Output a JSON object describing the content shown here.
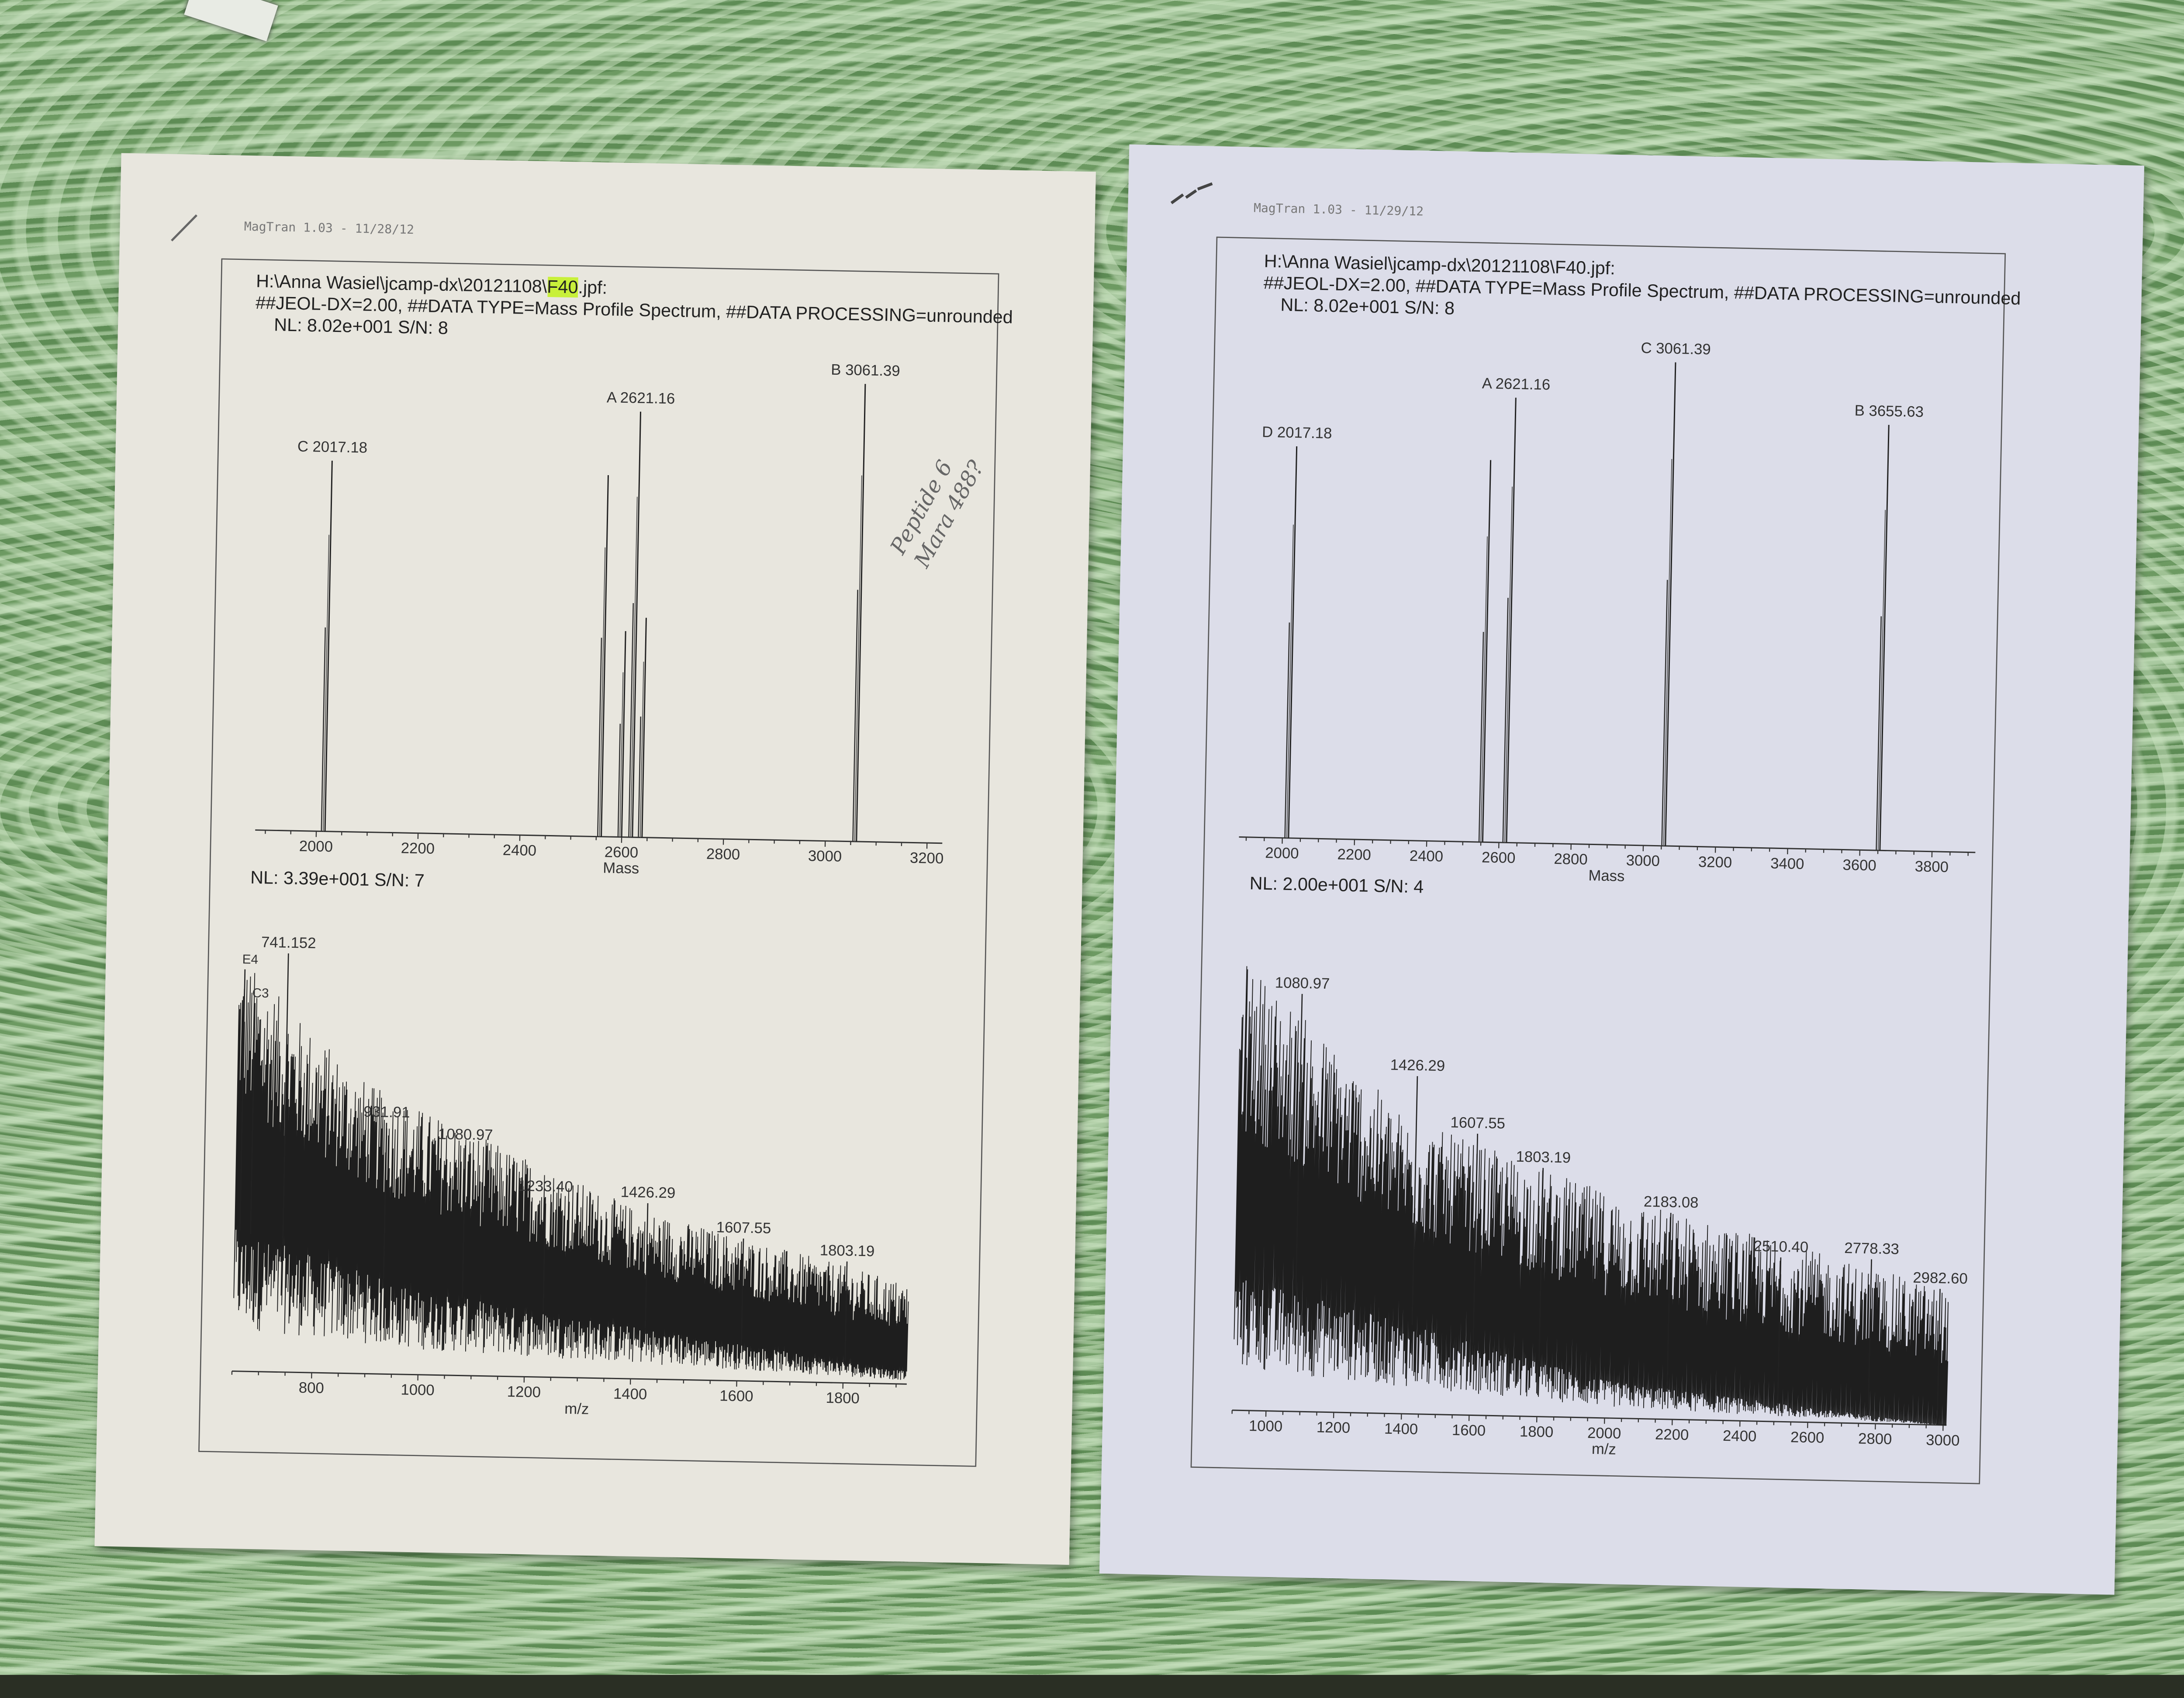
{
  "papers": [
    {
      "software": "MagTran 1.03 - 11/28/12",
      "file_prefix": "H:\\Anna Wasiel\\jcamp-dx\\20121108\\",
      "file_highlight": "F40",
      "file_suffix": ".jpf:",
      "header": "##JEOL-DX=2.00, ##DATA TYPE=Mass Profile Spectrum, ##DATA PROCESSING=unrounded",
      "handwritten_note": [
        "Peptide 6",
        "Mara 488?"
      ],
      "highlight_color": "#c8f03a",
      "paper_color": "#e8e6de"
    },
    {
      "software": "MagTran 1.03 - 11/29/12",
      "file_prefix": "H:\\Anna Wasiel\\jcamp-dx\\20121108\\F40.jpf:",
      "header": "##JEOL-DX=2.00, ##DATA TYPE=Mass Profile Spectrum, ##DATA PROCESSING=unrounded",
      "paper_color": "#dcdde9"
    }
  ],
  "chart_data": [
    {
      "type": "line",
      "nl_label": "NL: 8.02e+001  S/N: 8",
      "xlabel": "Mass",
      "xticks": [
        2000,
        2200,
        2400,
        2600,
        2800,
        3000,
        3200
      ],
      "xlim": [
        1880,
        3230
      ],
      "ylim": [
        0,
        100
      ],
      "peaks": [
        {
          "x": 2017.18,
          "y": 81,
          "label": "C 2017.18"
        },
        {
          "x": 2560,
          "y": 79,
          "label": ""
        },
        {
          "x": 2600,
          "y": 45,
          "label": ""
        },
        {
          "x": 2621.16,
          "y": 93,
          "label": "A 2621.16"
        },
        {
          "x": 2640,
          "y": 48,
          "label": ""
        },
        {
          "x": 3061.39,
          "y": 100,
          "label": "B 3061.39"
        }
      ]
    },
    {
      "type": "line",
      "nl_label": "NL: 3.39e+001  S/N: 7",
      "xlabel": "m/z",
      "xticks": [
        800,
        1000,
        1200,
        1400,
        1600,
        1800
      ],
      "xlim": [
        650,
        1920
      ],
      "ylim": [
        0,
        100
      ],
      "peaks": [
        {
          "x": 660,
          "y": 96,
          "label": "E4"
        },
        {
          "x": 680,
          "y": 88,
          "label": "C3"
        },
        {
          "x": 741.152,
          "y": 100,
          "label": "741.152"
        },
        {
          "x": 931.91,
          "y": 60,
          "label": "931.91"
        },
        {
          "x": 1080.97,
          "y": 55,
          "label": "1080.97"
        },
        {
          "x": 1233.4,
          "y": 43,
          "label": "1233.40"
        },
        {
          "x": 1426.29,
          "y": 42,
          "label": "1426.29"
        },
        {
          "x": 1607.55,
          "y": 34,
          "label": "1607.55"
        },
        {
          "x": 1803.19,
          "y": 29,
          "label": "1803.19"
        }
      ]
    },
    {
      "type": "line",
      "nl_label": "NL: 8.02e+001  S/N: 8",
      "xlabel": "Mass",
      "xticks": [
        2000,
        2200,
        2400,
        2600,
        2800,
        3000,
        3200,
        3400,
        3600,
        3800
      ],
      "xlim": [
        1880,
        3920
      ],
      "ylim": [
        0,
        100
      ],
      "peaks": [
        {
          "x": 2017.18,
          "y": 81,
          "label": "D 2017.18"
        },
        {
          "x": 2555,
          "y": 79,
          "label": ""
        },
        {
          "x": 2621.16,
          "y": 92,
          "label": "A 2621.16"
        },
        {
          "x": 3061.39,
          "y": 100,
          "label": "C 3061.39"
        },
        {
          "x": 3655.63,
          "y": 88,
          "label": "B 3655.63"
        }
      ]
    },
    {
      "type": "line",
      "nl_label": "NL: 2.00e+001  S/N: 4",
      "xlabel": "m/z",
      "xticks": [
        1000,
        1200,
        1400,
        1600,
        1800,
        2000,
        2200,
        2400,
        2600,
        2800,
        3000
      ],
      "xlim": [
        900,
        3010
      ],
      "ylim": [
        0,
        100
      ],
      "peaks": [
        {
          "x": 1080.97,
          "y": 89,
          "label": "1080.97"
        },
        {
          "x": 1426.29,
          "y": 72,
          "label": "1426.29"
        },
        {
          "x": 1607.55,
          "y": 60,
          "label": "1607.55"
        },
        {
          "x": 1803.19,
          "y": 53,
          "label": "1803.19"
        },
        {
          "x": 2183.08,
          "y": 44,
          "label": "2183.08"
        },
        {
          "x": 2510.4,
          "y": 35,
          "label": "2510.40"
        },
        {
          "x": 2778.33,
          "y": 35,
          "label": "2778.33"
        },
        {
          "x": 2982.6,
          "y": 29,
          "label": "2982.60"
        }
      ]
    }
  ]
}
